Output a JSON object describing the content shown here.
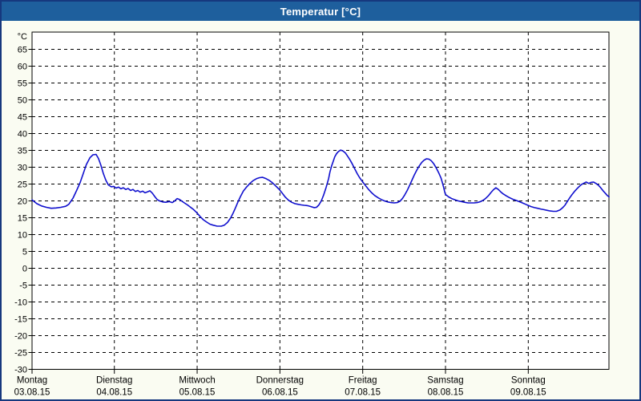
{
  "window": {
    "title": "Temperatur [°C]"
  },
  "colors": {
    "window_border": "#16387E",
    "titlebar_bg": "#1E5F9D",
    "title_text": "#FFFFFF",
    "outer_bg": "#FAFCF2",
    "plot_bg": "#FFFFFF",
    "grid": "#000000",
    "curve": "#1010CE"
  },
  "chart_data": {
    "type": "line",
    "title": "Temperatur [°C]",
    "y_unit_label": "°C",
    "ylabel": "Temperatur",
    "ylim": [
      -30,
      70
    ],
    "grid": "dashed",
    "legend_position": "none",
    "y_ticks": [
      65,
      60,
      55,
      50,
      45,
      40,
      35,
      30,
      25,
      20,
      15,
      10,
      5,
      0,
      -5,
      -10,
      -15,
      -20,
      -25,
      -30
    ],
    "x_days": [
      {
        "name": "Montag",
        "date": "03.08.15"
      },
      {
        "name": "Dienstag",
        "date": "04.08.15"
      },
      {
        "name": "Mittwoch",
        "date": "05.08.15"
      },
      {
        "name": "Donnerstag",
        "date": "06.08.15"
      },
      {
        "name": "Freitag",
        "date": "07.08.15"
      },
      {
        "name": "Samstag",
        "date": "08.08.15"
      },
      {
        "name": "Sonntag",
        "date": "09.08.15"
      }
    ],
    "x_span_hours": 167.4,
    "series": [
      {
        "name": "Temperatur",
        "unit": "°C",
        "points_format": [
          "hours_since_monday_midnight",
          "temperature_celsius"
        ],
        "points": [
          [
            0,
            20.3
          ],
          [
            1.5,
            19.2
          ],
          [
            2.9,
            18.5
          ],
          [
            4.3,
            18.1
          ],
          [
            5.7,
            17.8
          ],
          [
            7.1,
            17.9
          ],
          [
            8.5,
            18.1
          ],
          [
            9.9,
            18.4
          ],
          [
            10.8,
            19.0
          ],
          [
            12,
            20.8
          ],
          [
            13.1,
            23.2
          ],
          [
            14.1,
            25.5
          ],
          [
            15,
            28.2
          ],
          [
            15.9,
            30.8
          ],
          [
            16.9,
            32.8
          ],
          [
            17.8,
            33.7
          ],
          [
            18.7,
            33.8
          ],
          [
            19.4,
            32.6
          ],
          [
            20.1,
            30.6
          ],
          [
            20.8,
            28.2
          ],
          [
            21.5,
            26.2
          ],
          [
            22.2,
            24.8
          ],
          [
            23.1,
            24.2
          ],
          [
            23.8,
            24.3
          ],
          [
            24.5,
            23.8
          ],
          [
            25.2,
            24.1
          ],
          [
            25.9,
            23.6
          ],
          [
            26.6,
            23.9
          ],
          [
            27.3,
            23.4
          ],
          [
            28,
            23.7
          ],
          [
            28.7,
            23.1
          ],
          [
            29.4,
            23.4
          ],
          [
            30.1,
            22.8
          ],
          [
            30.8,
            23.1
          ],
          [
            31.5,
            22.6
          ],
          [
            32.2,
            22.9
          ],
          [
            32.9,
            22.4
          ],
          [
            33.6,
            22.7
          ],
          [
            34.3,
            23.0
          ],
          [
            35,
            22.3
          ],
          [
            35.7,
            21.3
          ],
          [
            36.4,
            20.4
          ],
          [
            37.1,
            20.0
          ],
          [
            38,
            19.7
          ],
          [
            38.9,
            19.6
          ],
          [
            39.9,
            19.8
          ],
          [
            40.8,
            19.5
          ],
          [
            41.5,
            20.0
          ],
          [
            42.2,
            20.7
          ],
          [
            42.9,
            20.4
          ],
          [
            43.6,
            19.9
          ],
          [
            44.3,
            19.4
          ],
          [
            45.2,
            18.8
          ],
          [
            46.1,
            18.1
          ],
          [
            47,
            17.4
          ],
          [
            48,
            16.4
          ],
          [
            48.9,
            15.3
          ],
          [
            49.8,
            14.4
          ],
          [
            50.8,
            13.7
          ],
          [
            51.7,
            13.1
          ],
          [
            52.6,
            12.8
          ],
          [
            53.8,
            12.5
          ],
          [
            55,
            12.5
          ],
          [
            55.9,
            12.8
          ],
          [
            56.8,
            13.6
          ],
          [
            57.7,
            14.9
          ],
          [
            58.4,
            16.3
          ],
          [
            59.1,
            17.9
          ],
          [
            59.8,
            19.6
          ],
          [
            60.5,
            21.2
          ],
          [
            61.4,
            22.9
          ],
          [
            62.4,
            24.2
          ],
          [
            63.3,
            25.2
          ],
          [
            64.2,
            26.0
          ],
          [
            65.2,
            26.6
          ],
          [
            66.1,
            26.9
          ],
          [
            67,
            27.0
          ],
          [
            68,
            26.6
          ],
          [
            68.9,
            26.1
          ],
          [
            69.8,
            25.4
          ],
          [
            70.7,
            24.5
          ],
          [
            71.4,
            23.8
          ],
          [
            71.9,
            23.3
          ],
          [
            72.6,
            22.4
          ],
          [
            73.5,
            21.2
          ],
          [
            74.5,
            20.2
          ],
          [
            75.4,
            19.6
          ],
          [
            76.3,
            19.2
          ],
          [
            77.2,
            19.0
          ],
          [
            78.2,
            18.8
          ],
          [
            79.1,
            18.7
          ],
          [
            80,
            18.6
          ],
          [
            81,
            18.3
          ],
          [
            81.9,
            18.0
          ],
          [
            82.6,
            18.1
          ],
          [
            83.3,
            18.8
          ],
          [
            84,
            20.0
          ],
          [
            84.7,
            21.8
          ],
          [
            85.4,
            24.0
          ],
          [
            86.1,
            26.6
          ],
          [
            86.5,
            28.6
          ],
          [
            87,
            30.4
          ],
          [
            87.5,
            31.9
          ],
          [
            87.9,
            33.1
          ],
          [
            88.4,
            34.0
          ],
          [
            88.9,
            34.6
          ],
          [
            89.6,
            35.1
          ],
          [
            90.3,
            34.8
          ],
          [
            91,
            34.2
          ],
          [
            91.6,
            33.3
          ],
          [
            92.3,
            32.2
          ],
          [
            93,
            30.9
          ],
          [
            93.7,
            29.5
          ],
          [
            94.4,
            28.1
          ],
          [
            95.1,
            26.9
          ],
          [
            95.8,
            25.9
          ],
          [
            96.8,
            24.6
          ],
          [
            97.7,
            23.4
          ],
          [
            98.6,
            22.4
          ],
          [
            99.5,
            21.6
          ],
          [
            100.5,
            20.9
          ],
          [
            101.4,
            20.4
          ],
          [
            102.3,
            20.0
          ],
          [
            103.3,
            19.7
          ],
          [
            104.2,
            19.5
          ],
          [
            105.1,
            19.4
          ],
          [
            106,
            19.5
          ],
          [
            106.8,
            19.9
          ],
          [
            107.5,
            20.7
          ],
          [
            108.2,
            21.8
          ],
          [
            108.9,
            23.1
          ],
          [
            109.6,
            24.6
          ],
          [
            110.3,
            26.2
          ],
          [
            111,
            27.8
          ],
          [
            111.7,
            29.2
          ],
          [
            112.4,
            30.4
          ],
          [
            113.1,
            31.4
          ],
          [
            113.8,
            32.1
          ],
          [
            114.5,
            32.5
          ],
          [
            115.2,
            32.4
          ],
          [
            115.9,
            31.9
          ],
          [
            116.6,
            31.0
          ],
          [
            117.3,
            29.8
          ],
          [
            118,
            28.4
          ],
          [
            118.7,
            26.8
          ],
          [
            119.1,
            25.4
          ],
          [
            119.5,
            23.9
          ],
          [
            119.8,
            22.6
          ],
          [
            120,
            21.9
          ],
          [
            120.9,
            21.2
          ],
          [
            121.8,
            20.7
          ],
          [
            122.8,
            20.3
          ],
          [
            123.7,
            20.0
          ],
          [
            124.6,
            19.8
          ],
          [
            125.5,
            19.6
          ],
          [
            126.5,
            19.4
          ],
          [
            127.4,
            19.4
          ],
          [
            128.3,
            19.4
          ],
          [
            129.2,
            19.5
          ],
          [
            130.2,
            19.8
          ],
          [
            131.1,
            20.3
          ],
          [
            131.8,
            20.9
          ],
          [
            132.5,
            21.6
          ],
          [
            133.2,
            22.5
          ],
          [
            133.9,
            23.3
          ],
          [
            134.6,
            23.9
          ],
          [
            135.3,
            23.4
          ],
          [
            136,
            22.7
          ],
          [
            136.7,
            22.1
          ],
          [
            137.6,
            21.5
          ],
          [
            138.5,
            21.0
          ],
          [
            139.5,
            20.5
          ],
          [
            140.4,
            20.2
          ],
          [
            141.3,
            19.8
          ],
          [
            142.3,
            19.4
          ],
          [
            143.2,
            19.0
          ],
          [
            143.9,
            18.7
          ],
          [
            144.8,
            18.3
          ],
          [
            145.8,
            18.0
          ],
          [
            146.7,
            17.8
          ],
          [
            147.6,
            17.6
          ],
          [
            148.5,
            17.4
          ],
          [
            149.5,
            17.2
          ],
          [
            150.4,
            17.0
          ],
          [
            151.3,
            16.9
          ],
          [
            152.2,
            16.9
          ],
          [
            153.2,
            17.3
          ],
          [
            153.9,
            17.9
          ],
          [
            154.6,
            18.7
          ],
          [
            155.3,
            19.8
          ],
          [
            156,
            20.9
          ],
          [
            156.7,
            21.9
          ],
          [
            157.4,
            22.8
          ],
          [
            158.1,
            23.6
          ],
          [
            158.8,
            24.3
          ],
          [
            159.5,
            24.9
          ],
          [
            160.2,
            25.3
          ],
          [
            160.8,
            25.6
          ],
          [
            161.5,
            25.2
          ],
          [
            162.2,
            25.5
          ],
          [
            162.9,
            25.6
          ],
          [
            163.6,
            25.2
          ],
          [
            164.3,
            24.7
          ],
          [
            165,
            23.9
          ],
          [
            165.7,
            23.0
          ],
          [
            166.4,
            22.2
          ],
          [
            166.9,
            21.6
          ],
          [
            167.4,
            21.2
          ]
        ]
      }
    ]
  }
}
